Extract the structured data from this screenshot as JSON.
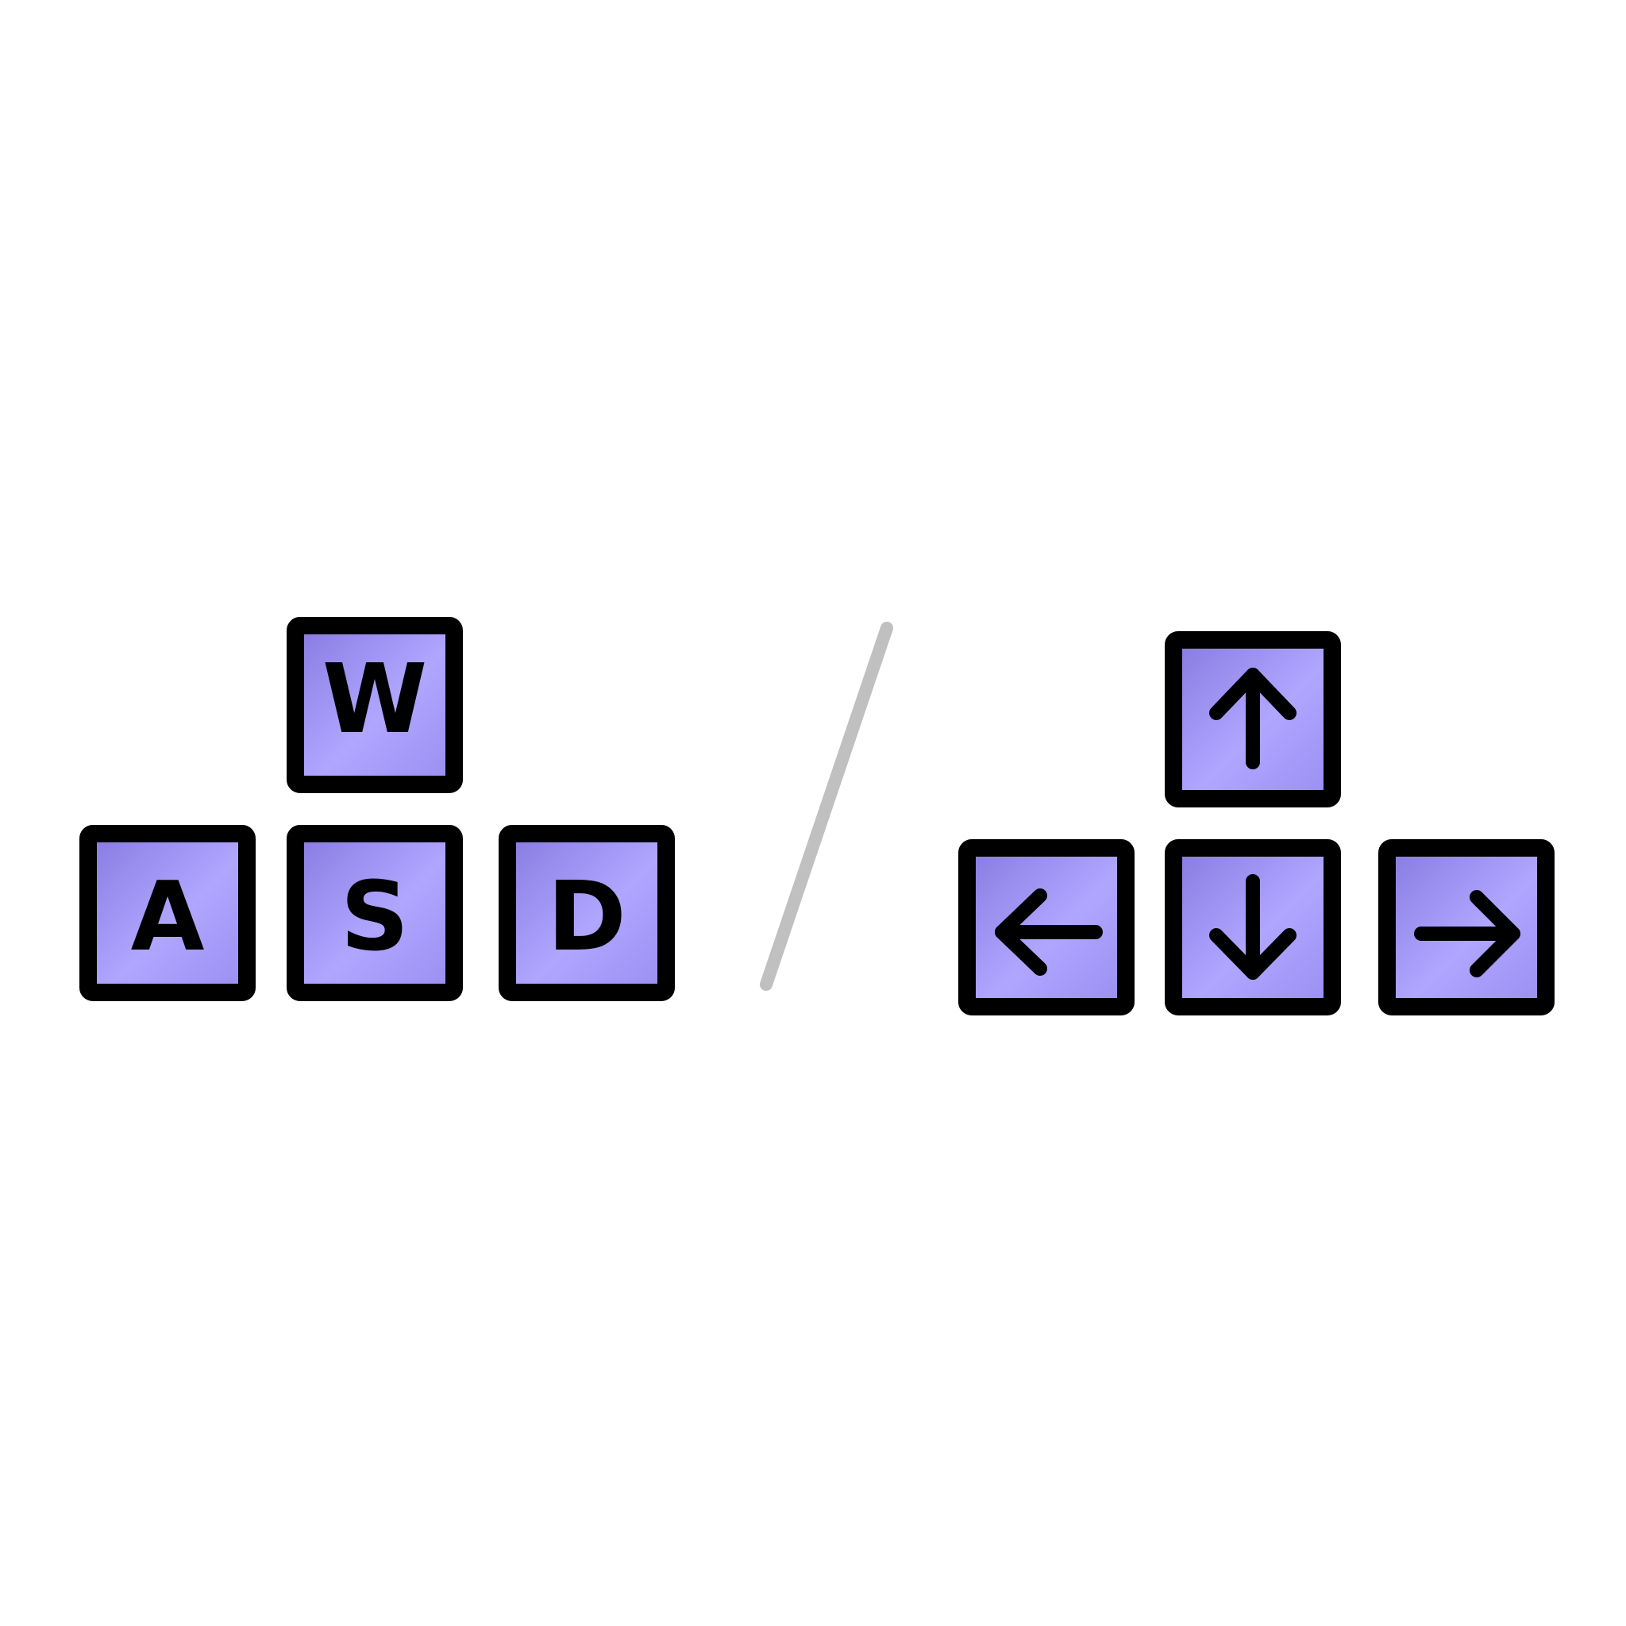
{
  "background_color": "#ffffff",
  "key_colors": {
    "fill_light": "#b0a6ff",
    "fill_dark": "#8779e0",
    "border": "#000000"
  },
  "separator_color": "#c0c0c0",
  "wasd_keys": {
    "w": "W",
    "a": "A",
    "s": "S",
    "d": "D"
  },
  "arrow_keys": {
    "up": "up-arrow-icon",
    "left": "left-arrow-icon",
    "down": "down-arrow-icon",
    "right": "right-arrow-icon"
  }
}
